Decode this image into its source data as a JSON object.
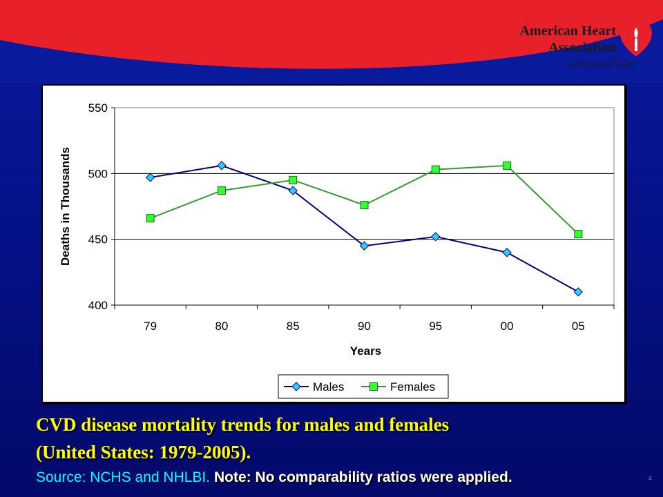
{
  "logo": {
    "line1": "American Heart",
    "line2": "Association",
    "tagline": "Learn and Live",
    "registered": "®"
  },
  "colors": {
    "banner_red": "#e8202a",
    "background_blue": "#0a1a9c",
    "males": "#000080",
    "males_marker": "#33ccff",
    "females": "#339933",
    "females_marker": "#33ff33",
    "caption": "#ffff00",
    "source": "#00ffff"
  },
  "chart_data": {
    "type": "line",
    "categories": [
      "79",
      "80",
      "85",
      "90",
      "95",
      "00",
      "05"
    ],
    "series": [
      {
        "name": "Males",
        "values": [
          497,
          506,
          487,
          445,
          452,
          440,
          410
        ],
        "marker": "diamond"
      },
      {
        "name": "Females",
        "values": [
          466,
          487,
          495,
          476,
          503,
          506,
          454
        ],
        "marker": "square"
      }
    ],
    "xlabel": "Years",
    "ylabel": "Deaths in Thousands",
    "ylim": [
      400,
      550
    ],
    "yticks": [
      400,
      450,
      500,
      550
    ],
    "legend_position": "bottom"
  },
  "caption": {
    "line1": "CVD disease mortality trends for males and females",
    "line2": "(United States: 1979-2005).",
    "source": "Source: NCHS and NHLBI.",
    "note": "Note: No comparability ratios were applied."
  },
  "page_number": "4"
}
